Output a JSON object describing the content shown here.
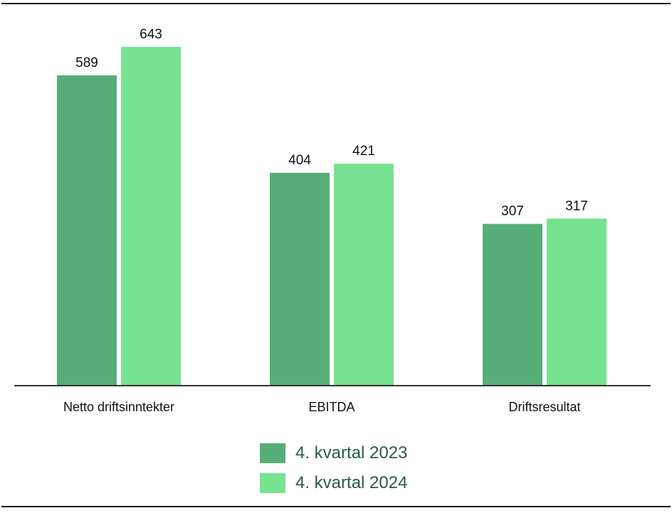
{
  "colors": {
    "series_2023": "#57ad77",
    "series_2024": "#77e28f",
    "axis": "#333333",
    "text": "#111111",
    "legend_text": "#285a50"
  },
  "chart_data": {
    "type": "bar",
    "categories": [
      "Netto driftsinntekter",
      "EBITDA",
      "Driftsresultat"
    ],
    "series": [
      {
        "name": "4. kvartal 2023",
        "values": [
          589,
          404,
          307
        ]
      },
      {
        "name": "4. kvartal 2024",
        "values": [
          643,
          421,
          317
        ]
      }
    ],
    "ylim": [
      0,
      700
    ],
    "grid": false,
    "legend_placement": "bottom-center",
    "data_labels": true
  }
}
